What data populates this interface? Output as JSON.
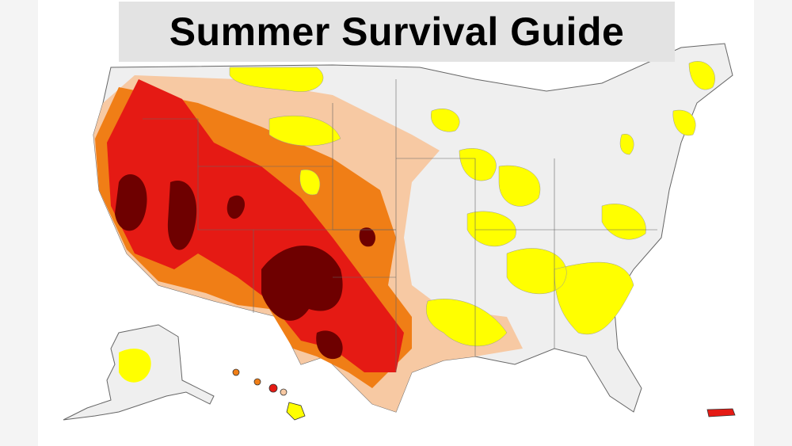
{
  "title": "Summer Survival Guide"
}
